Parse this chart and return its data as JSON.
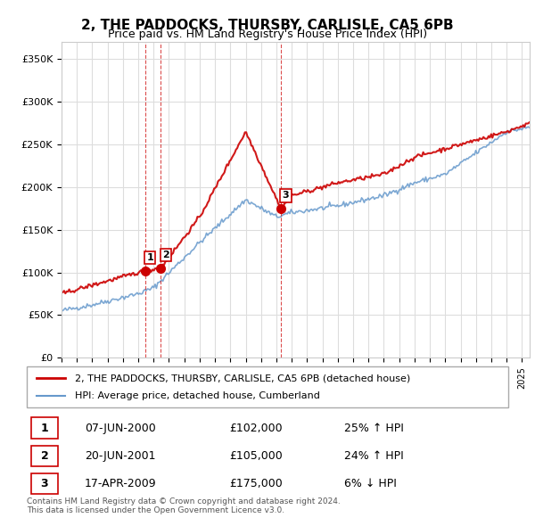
{
  "title": "2, THE PADDOCKS, THURSBY, CARLISLE, CA5 6PB",
  "subtitle": "Price paid vs. HM Land Registry's House Price Index (HPI)",
  "ylabel_ticks": [
    "£0",
    "£50K",
    "£100K",
    "£150K",
    "£200K",
    "£250K",
    "£300K",
    "£350K"
  ],
  "ytick_values": [
    0,
    50000,
    100000,
    150000,
    200000,
    250000,
    300000,
    350000
  ],
  "ylim": [
    0,
    370000
  ],
  "xlim_start": 1995.0,
  "xlim_end": 2025.5,
  "transactions": [
    {
      "label": "1",
      "date": "07-JUN-2000",
      "year": 2000.44,
      "price": 102000,
      "pct": "25%",
      "dir": "↑"
    },
    {
      "label": "2",
      "date": "20-JUN-2001",
      "year": 2001.47,
      "price": 105000,
      "pct": "24%",
      "dir": "↑"
    },
    {
      "label": "3",
      "date": "17-APR-2009",
      "year": 2009.29,
      "price": 175000,
      "pct": "6%",
      "dir": "↓"
    }
  ],
  "legend_line1": "2, THE PADDOCKS, THURSBY, CARLISLE, CA5 6PB (detached house)",
  "legend_line2": "HPI: Average price, detached house, Cumberland",
  "footer1": "Contains HM Land Registry data © Crown copyright and database right 2024.",
  "footer2": "This data is licensed under the Open Government Licence v3.0.",
  "line_color_red": "#cc0000",
  "line_color_blue": "#6699cc",
  "background_color": "#ffffff",
  "grid_color": "#dddddd"
}
